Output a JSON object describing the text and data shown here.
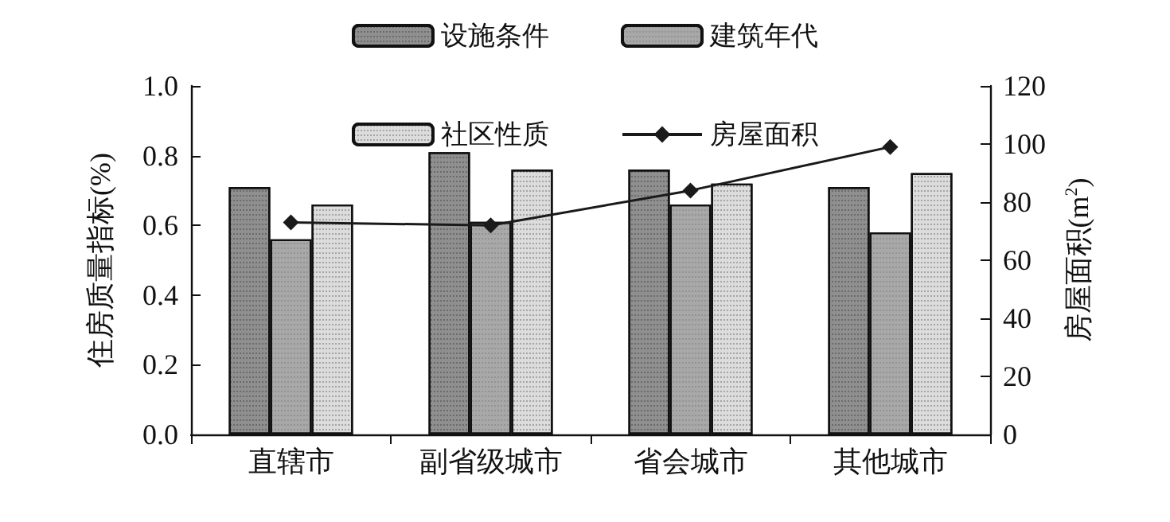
{
  "chart_data": {
    "type": "bar",
    "categories": [
      "直辖市",
      "副省级城市",
      "省会城市",
      "其他城市"
    ],
    "series": [
      {
        "name": "设施条件",
        "color": "#8f8f8f",
        "values": [
          0.71,
          0.81,
          0.76,
          0.71
        ]
      },
      {
        "name": "建筑年代",
        "color": "#a8a8a8",
        "values": [
          0.56,
          0.61,
          0.66,
          0.58
        ]
      },
      {
        "name": "社区性质",
        "color": "#dcdcdc",
        "values": [
          0.66,
          0.76,
          0.72,
          0.75
        ]
      },
      {
        "name": "房屋面积",
        "type": "line",
        "axis": "y2",
        "color": "#1a1a1a",
        "marker": "diamond",
        "values": [
          73,
          72,
          84,
          99
        ]
      }
    ],
    "ylabel": "住房质量指标(%)",
    "y2label": "房屋面积(m$^{2}$)",
    "ylim": [
      0,
      1
    ],
    "yticks": [
      {
        "value": 0,
        "label": "0.0"
      },
      0.2,
      0.4,
      0.6,
      0.8,
      {
        "value": 1,
        "label": "1.0"
      }
    ],
    "y2lim": [
      0,
      120
    ],
    "y2ticks": [
      0,
      20,
      40,
      60,
      80,
      100,
      120
    ],
    "grid": false,
    "legend": "top"
  }
}
